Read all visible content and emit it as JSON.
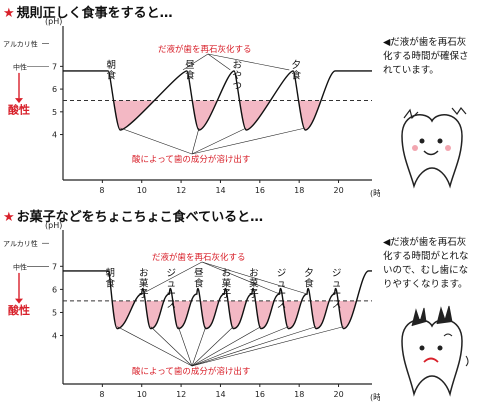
{
  "chart_data": [
    {
      "type": "line",
      "title": "規則正しく食事をすると…",
      "y_unit": "(pH)",
      "x_unit": "(時刻)",
      "y_ticks": [
        4,
        5,
        6,
        7
      ],
      "x_ticks": [
        8,
        10,
        12,
        14,
        16,
        18,
        20
      ],
      "critical_ph": 5.5,
      "baseline_ph": 6.8,
      "labels_left": {
        "alkaline": "アルカリ性",
        "neutral": "中性",
        "acidic": "酸性"
      },
      "annotation_top": "だ液が歯を再石灰化する",
      "annotation_bottom": "酸によって歯の成分が溶け出す",
      "side_text": "◀だ液が歯を再石灰\n化する時間が確保さ\nれています。",
      "events": [
        {
          "label": "朝食",
          "time": 8.3,
          "min_ph": 4.2
        },
        {
          "label": "昼食",
          "time": 12.3,
          "min_ph": 4.2
        },
        {
          "label": "おやつ",
          "time": 14.7,
          "min_ph": 4.2
        },
        {
          "label": "夕食",
          "time": 17.7,
          "min_ph": 4.2
        }
      ]
    },
    {
      "type": "line",
      "title": "お菓子などをちょこちょこ食べていると…",
      "y_unit": "(pH)",
      "x_unit": "(時刻)",
      "y_ticks": [
        4,
        5,
        6,
        7
      ],
      "x_ticks": [
        8,
        10,
        12,
        14,
        16,
        18,
        20
      ],
      "critical_ph": 5.5,
      "baseline_ph": 6.8,
      "labels_left": {
        "alkaline": "アルカリ性",
        "neutral": "中性",
        "acidic": "酸性"
      },
      "annotation_top": "だ液が歯を再石灰化する",
      "annotation_bottom": "酸によって歯の成分が溶け出す",
      "side_text": "◀だ液が歯を再石灰\n化する時間がとれな\nいので、むし歯にな\nりやすくなります。",
      "events": [
        {
          "label": "朝食",
          "time": 8.3,
          "min_ph": 4.3
        },
        {
          "label": "お菓子",
          "time": 10.0,
          "min_ph": 4.3
        },
        {
          "label": "ジュース",
          "time": 11.4,
          "min_ph": 4.3
        },
        {
          "label": "昼食",
          "time": 12.8,
          "min_ph": 4.3
        },
        {
          "label": "お菓子",
          "time": 14.2,
          "min_ph": 4.3
        },
        {
          "label": "お菓子",
          "time": 15.6,
          "min_ph": 4.3
        },
        {
          "label": "ジュース",
          "time": 17.0,
          "min_ph": 4.3
        },
        {
          "label": "夕食",
          "time": 18.4,
          "min_ph": 4.3
        },
        {
          "label": "ジュース",
          "time": 19.8,
          "min_ph": 4.3
        }
      ]
    }
  ]
}
